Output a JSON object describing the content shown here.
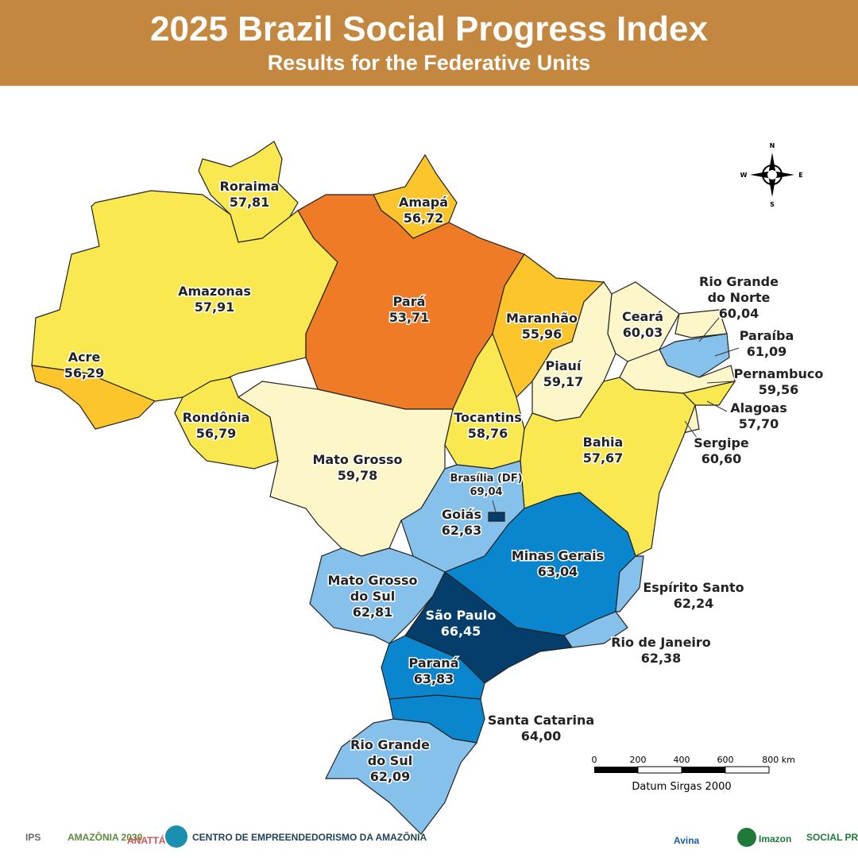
{
  "header": {
    "title": "2025 Brazil Social Progress Index",
    "subtitle": "Results for the Federative Units"
  },
  "states": [
    {
      "name_lines": [
        "Roraima"
      ],
      "score": "57,81",
      "color": "#f9e84f"
    },
    {
      "name_lines": [
        "Amapá"
      ],
      "score": "56,72",
      "color": "#fcc52b"
    },
    {
      "name_lines": [
        "Amazonas"
      ],
      "score": "57,91",
      "color": "#f9e84f"
    },
    {
      "name_lines": [
        "Acre"
      ],
      "score": "56,29",
      "color": "#fcc52b"
    },
    {
      "name_lines": [
        "Rondônia"
      ],
      "score": "56,79",
      "color": "#f9e84f"
    },
    {
      "name_lines": [
        "Pará"
      ],
      "score": "53,71",
      "color": "#ef7b27"
    },
    {
      "name_lines": [
        "Maranhão"
      ],
      "score": "55,96",
      "color": "#fcc52b"
    },
    {
      "name_lines": [
        "Tocantins"
      ],
      "score": "58,76",
      "color": "#f9e84f"
    },
    {
      "name_lines": [
        "Mato Grosso"
      ],
      "score": "59,78",
      "color": "#fdf6c9"
    },
    {
      "name_lines": [
        "Piauí"
      ],
      "score": "59,17",
      "color": "#fdf6c9"
    },
    {
      "name_lines": [
        "Ceará"
      ],
      "score": "60,03",
      "color": "#fdf6c9"
    },
    {
      "name_lines": [
        "Rio Grande",
        "do Norte"
      ],
      "score": "60,04",
      "color": "#fdf6c9"
    },
    {
      "name_lines": [
        "Paraíba"
      ],
      "score": "61,09",
      "color": "#86c1ec"
    },
    {
      "name_lines": [
        "Pernambuco"
      ],
      "score": "59,56",
      "color": "#fdf6c9"
    },
    {
      "name_lines": [
        "Alagoas"
      ],
      "score": "57,70",
      "color": "#f9e84f"
    },
    {
      "name_lines": [
        "Sergipe"
      ],
      "score": "60,60",
      "color": "#fdf6c9"
    },
    {
      "name_lines": [
        "Bahia"
      ],
      "score": "57,67",
      "color": "#f9e84f"
    },
    {
      "name_lines": [
        "Goiás"
      ],
      "score": "62,63",
      "color": "#86c1ec"
    },
    {
      "name_lines": [
        "Brasília (DF)"
      ],
      "score": "69,04",
      "color": "#053e6b"
    },
    {
      "name_lines": [
        "Minas Gerais"
      ],
      "score": "63,04",
      "color": "#0a86cf"
    },
    {
      "name_lines": [
        "Espírito Santo"
      ],
      "score": "62,24",
      "color": "#86c1ec"
    },
    {
      "name_lines": [
        "Rio de Janeiro"
      ],
      "score": "62,38",
      "color": "#86c1ec"
    },
    {
      "name_lines": [
        "Mato Grosso",
        "do Sul"
      ],
      "score": "62,81",
      "color": "#86c1ec"
    },
    {
      "name_lines": [
        "São Paulo"
      ],
      "score": "66,45",
      "color": "#053e6b"
    },
    {
      "name_lines": [
        "Paraná"
      ],
      "score": "63,83",
      "color": "#0a86cf"
    },
    {
      "name_lines": [
        "Santa Catarina"
      ],
      "score": "64,00",
      "color": "#0a86cf"
    },
    {
      "name_lines": [
        "Rio Grande",
        "do Sul"
      ],
      "score": "62,09",
      "color": "#86c1ec"
    }
  ],
  "compass": {
    "n": "N",
    "s": "S",
    "w": "W",
    "e": "E"
  },
  "scale": {
    "labels": [
      "0",
      "200",
      "400",
      "600",
      "800 km"
    ],
    "datum": "Datum Sirgas 2000"
  },
  "logos": [
    "IPS",
    "AMAZÔNIA 2030",
    "ANATTÁ",
    "CENTRO DE EMPREENDEDORISMO DA AMAZÔNIA",
    "Avina",
    "Imazon",
    "SOCIAL PROGRESS IMPERATIVE"
  ]
}
